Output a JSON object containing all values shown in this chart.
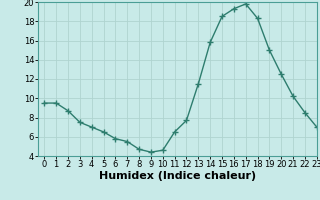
{
  "x": [
    0,
    1,
    2,
    3,
    4,
    5,
    6,
    7,
    8,
    9,
    10,
    11,
    12,
    13,
    14,
    15,
    16,
    17,
    18,
    19,
    20,
    21,
    22,
    23
  ],
  "y": [
    9.5,
    9.5,
    8.7,
    7.5,
    7.0,
    6.5,
    5.8,
    5.5,
    4.7,
    4.4,
    4.6,
    6.5,
    7.7,
    11.5,
    15.8,
    18.5,
    19.3,
    19.8,
    18.3,
    15.0,
    12.5,
    10.2,
    8.5,
    7.0
  ],
  "line_color": "#2e7d6e",
  "marker": "+",
  "marker_size": 4,
  "background_color": "#c8eae8",
  "grid_color": "#afd4d0",
  "xlabel": "Humidex (Indice chaleur)",
  "ylim": [
    4,
    20
  ],
  "xlim": [
    -0.5,
    23
  ],
  "yticks": [
    4,
    6,
    8,
    10,
    12,
    14,
    16,
    18,
    20
  ],
  "xticks": [
    0,
    1,
    2,
    3,
    4,
    5,
    6,
    7,
    8,
    9,
    10,
    11,
    12,
    13,
    14,
    15,
    16,
    17,
    18,
    19,
    20,
    21,
    22,
    23
  ],
  "tick_fontsize": 6,
  "xlabel_fontsize": 8,
  "line_width": 1.0,
  "marker_color": "#2e7d6e",
  "spine_color": "#4a9e96"
}
